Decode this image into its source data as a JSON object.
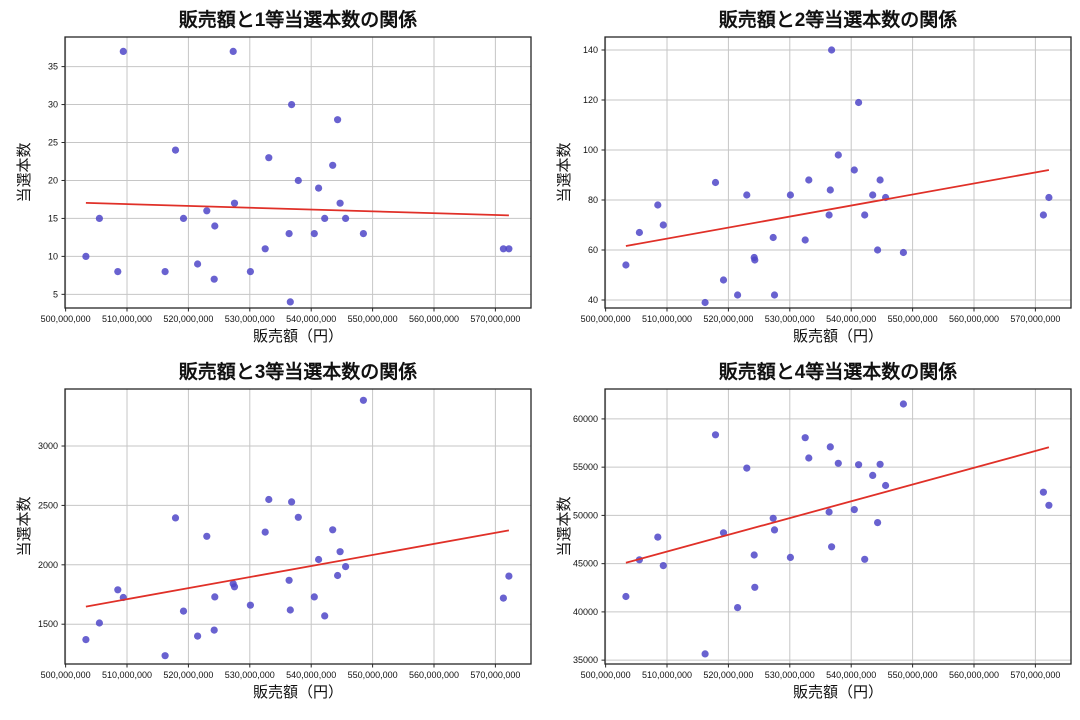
{
  "figure": {
    "background": "#ffffff",
    "grid_color": "#c6c6c6",
    "spine_color": "#262626",
    "tick_color": "#262626",
    "text_color": "#111111",
    "point_color": "#4f46c8",
    "point_opacity": 0.85,
    "trend_color": "#e03028"
  },
  "chart_data": [
    {
      "type": "scatter",
      "title": "販売額と1等当選本数の関係",
      "xlabel": "販売額（円）",
      "ylabel": "当選本数",
      "grid": true,
      "legend": "none",
      "xlim": [
        499900000,
        575800000
      ],
      "ylim": [
        3.2,
        38.9
      ],
      "xtick_values": [
        500000000,
        510000000,
        520000000,
        530000000,
        540000000,
        550000000,
        560000000,
        570000000
      ],
      "xtick_labels": [
        "500,000,000",
        "510,000,000",
        "520,000,000",
        "530,000,000",
        "540,000,000",
        "550,000,000",
        "560,000,000",
        "570,000,000"
      ],
      "yticks": [
        5,
        10,
        15,
        20,
        25,
        30,
        35
      ],
      "x": [
        503300000,
        505500000,
        508500000,
        509400000,
        516200000,
        517900000,
        519200000,
        521500000,
        523000000,
        524200000,
        524300000,
        527300000,
        527500000,
        530100000,
        532500000,
        533100000,
        536400000,
        536600000,
        536800000,
        537900000,
        540500000,
        541200000,
        542200000,
        543500000,
        544300000,
        544700000,
        545600000,
        548500000,
        571300000,
        572200000
      ],
      "y": [
        10,
        15,
        8,
        37,
        8,
        24,
        15,
        9,
        16,
        7,
        14,
        37,
        17,
        8,
        11,
        23,
        13,
        4,
        30,
        20,
        13,
        19,
        15,
        22,
        28,
        17,
        15,
        13,
        11,
        11
      ],
      "trend": {
        "x1": 503300000,
        "y1": 17.05,
        "x2": 572200000,
        "y2": 15.4
      }
    },
    {
      "type": "scatter",
      "title": "販売額と2等当選本数の関係",
      "xlabel": "販売額（円）",
      "ylabel": "当選本数",
      "grid": true,
      "legend": "none",
      "xlim": [
        499900000,
        575800000
      ],
      "ylim": [
        36.8,
        145.2
      ],
      "xtick_values": [
        500000000,
        510000000,
        520000000,
        530000000,
        540000000,
        550000000,
        560000000,
        570000000
      ],
      "xtick_labels": [
        "500,000,000",
        "510,000,000",
        "520,000,000",
        "530,000,000",
        "540,000,000",
        "550,000,000",
        "560,000,000",
        "570,000,000"
      ],
      "yticks": [
        40,
        60,
        80,
        100,
        120,
        140
      ],
      "x": [
        503300000,
        505500000,
        508500000,
        509400000,
        516200000,
        517900000,
        519200000,
        521500000,
        523000000,
        524200000,
        524300000,
        527300000,
        527500000,
        530100000,
        532500000,
        533100000,
        536400000,
        536600000,
        536800000,
        537900000,
        540500000,
        541200000,
        542200000,
        543500000,
        544300000,
        544700000,
        545600000,
        548500000,
        571300000,
        572200000
      ],
      "y": [
        54,
        67,
        78,
        70,
        39,
        87,
        48,
        42,
        82,
        57,
        56,
        65,
        42,
        82,
        64,
        88,
        74,
        84,
        140,
        98,
        92,
        119,
        74,
        82,
        60,
        88,
        81,
        59,
        74,
        81
      ],
      "trend": {
        "x1": 503300000,
        "y1": 61.6,
        "x2": 572200000,
        "y2": 92.0
      }
    },
    {
      "type": "scatter",
      "title": "販売額と3等当選本数の関係",
      "xlabel": "販売額（円）",
      "ylabel": "当選本数",
      "grid": true,
      "legend": "none",
      "xlim": [
        499900000,
        575800000
      ],
      "ylim": [
        1165,
        3480
      ],
      "xtick_values": [
        500000000,
        510000000,
        520000000,
        530000000,
        540000000,
        550000000,
        560000000,
        570000000
      ],
      "xtick_labels": [
        "500,000,000",
        "510,000,000",
        "520,000,000",
        "530,000,000",
        "540,000,000",
        "550,000,000",
        "560,000,000",
        "570,000,000"
      ],
      "yticks": [
        1500,
        2000,
        2500,
        3000
      ],
      "x": [
        503300000,
        505500000,
        508500000,
        509400000,
        516200000,
        517900000,
        519200000,
        521500000,
        523000000,
        524200000,
        524300000,
        527300000,
        527500000,
        530100000,
        532500000,
        533100000,
        536400000,
        536600000,
        536800000,
        537900000,
        540500000,
        541200000,
        542200000,
        543500000,
        544300000,
        544700000,
        545600000,
        548500000,
        571300000,
        572200000
      ],
      "y": [
        1370,
        1510,
        1790,
        1725,
        1235,
        2395,
        1610,
        1400,
        2240,
        1450,
        1730,
        1840,
        1815,
        1660,
        2275,
        2550,
        1870,
        1620,
        2530,
        2400,
        1730,
        2045,
        1570,
        2295,
        1910,
        2110,
        1985,
        3385,
        1720,
        1905
      ],
      "trend": {
        "x1": 503300000,
        "y1": 1648,
        "x2": 572200000,
        "y2": 2290
      }
    },
    {
      "type": "scatter",
      "title": "販売額と4等当選本数の関係",
      "xlabel": "販売額（円）",
      "ylabel": "当選本数",
      "grid": true,
      "legend": "none",
      "xlim": [
        499900000,
        575800000
      ],
      "ylim": [
        34600,
        63100
      ],
      "xtick_values": [
        500000000,
        510000000,
        520000000,
        530000000,
        540000000,
        550000000,
        560000000,
        570000000
      ],
      "xtick_labels": [
        "500,000,000",
        "510,000,000",
        "520,000,000",
        "530,000,000",
        "540,000,000",
        "550,000,000",
        "560,000,000",
        "570,000,000"
      ],
      "yticks": [
        35000,
        40000,
        45000,
        50000,
        55000,
        60000
      ],
      "x": [
        503300000,
        505500000,
        508500000,
        509400000,
        516200000,
        517900000,
        519200000,
        521500000,
        523000000,
        524200000,
        524300000,
        527300000,
        527500000,
        530100000,
        532500000,
        533100000,
        536400000,
        536600000,
        536800000,
        537900000,
        540500000,
        541200000,
        542200000,
        543500000,
        544300000,
        544700000,
        545600000,
        548500000,
        571300000,
        572200000
      ],
      "y": [
        41600,
        45400,
        47750,
        44800,
        35650,
        58350,
        48200,
        40450,
        54900,
        45900,
        42550,
        49700,
        48500,
        45650,
        58050,
        55950,
        50350,
        57100,
        46750,
        55400,
        50600,
        55250,
        45450,
        54150,
        49250,
        55300,
        53100,
        61550,
        52400,
        51050
      ],
      "trend": {
        "x1": 503300000,
        "y1": 45090,
        "x2": 572200000,
        "y2": 57060
      }
    }
  ]
}
